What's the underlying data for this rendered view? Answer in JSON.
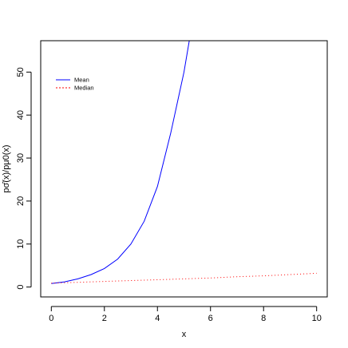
{
  "chart_data": {
    "type": "line",
    "title": "",
    "xlabel": "x",
    "ylabel": "pσ̂(x)/pμ0(x)",
    "xlim": [
      -0.4,
      10.4
    ],
    "ylim": [
      -2.3,
      57.3
    ],
    "x_ticks": [
      "0",
      "2",
      "4",
      "6",
      "8",
      "10"
    ],
    "y_ticks": [
      "0",
      "10",
      "20",
      "30",
      "40",
      "50"
    ],
    "grid": false,
    "legend_position": "top-left",
    "series": [
      {
        "name": "Mean",
        "color": "#0000ff",
        "dash": "solid",
        "x": [
          0,
          0.5,
          1,
          1.5,
          2,
          2.5,
          3,
          3.5,
          4,
          4.5,
          5,
          5.2
        ],
        "y": [
          0.8,
          1.2,
          1.9,
          2.9,
          4.3,
          6.5,
          10.0,
          15.3,
          23.4,
          35.8,
          50.0,
          57.3
        ]
      },
      {
        "name": "Median",
        "color": "#ff0000",
        "dash": "dotted",
        "x": [
          0,
          1,
          2,
          3,
          4,
          5,
          6,
          7,
          8,
          9,
          10
        ],
        "y": [
          0.9,
          1.1,
          1.3,
          1.5,
          1.7,
          1.9,
          2.1,
          2.4,
          2.6,
          2.9,
          3.2
        ]
      }
    ]
  }
}
